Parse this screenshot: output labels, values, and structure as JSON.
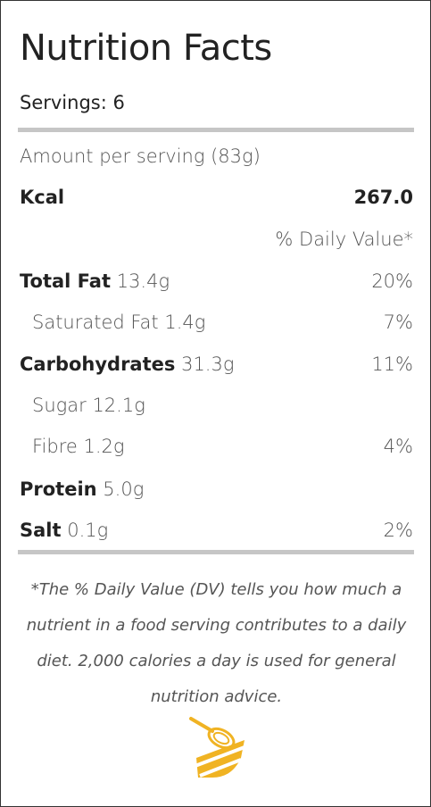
{
  "title": "Nutrition Facts",
  "servings": "Servings: 6",
  "amount_per_serving": "Amount per serving (83g)",
  "kcal": {
    "label": "Kcal",
    "value": "267.0"
  },
  "daily_value_header": "% Daily Value*",
  "nutrients": [
    {
      "label": "Total Fat",
      "amount": "13.4g",
      "dv": "20%"
    },
    {
      "label": "Saturated Fat",
      "amount": "1.4g",
      "dv": "7%"
    },
    {
      "label": "Carbohydrates",
      "amount": "31.3g",
      "dv": "11%"
    },
    {
      "label": "Sugar",
      "amount": "12.1g",
      "dv": ""
    },
    {
      "label": "Fibre",
      "amount": "1.2g",
      "dv": "4%"
    },
    {
      "label": "Protein",
      "amount": "5.0g",
      "dv": ""
    },
    {
      "label": "Salt",
      "amount": "0.1g",
      "dv": "2%"
    }
  ],
  "footnote": "*The % Daily Value (DV) tells you how much a nutrient in a food serving contributes to a daily diet. 2,000 calories a day is used for general nutrition advice.",
  "colors": {
    "rule": "#c6c6c6",
    "logo_yellow": "#f0b323"
  },
  "logo_icon": "whisk-bowl-icon"
}
